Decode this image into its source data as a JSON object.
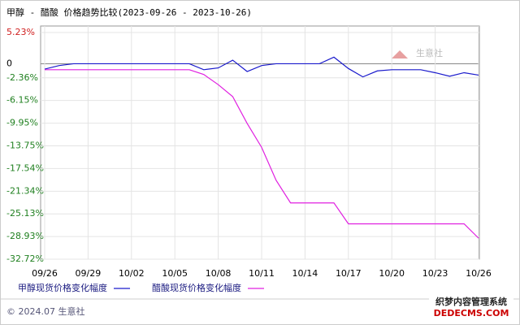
{
  "chart_data": {
    "type": "line",
    "title": "甲醇 - 醋酸 价格趋势比较(2023-09-26 - 2023-10-26)",
    "categories": [
      "09/26",
      null,
      null,
      "09/29",
      null,
      null,
      "10/02",
      null,
      null,
      "10/05",
      null,
      null,
      "10/08",
      null,
      null,
      "10/11",
      null,
      null,
      "10/14",
      null,
      null,
      "10/17",
      null,
      null,
      "10/20",
      null,
      null,
      "10/23",
      null,
      null,
      "10/26"
    ],
    "series": [
      {
        "name": "甲醇现货价格变化幅度",
        "color": "#1a1acc",
        "values": [
          -0.9,
          -0.3,
          0,
          0,
          0,
          0,
          0,
          0,
          0,
          0,
          0,
          -1.0,
          -0.7,
          0.6,
          -1.3,
          -0.3,
          0,
          0,
          0,
          0,
          1.1,
          -0.8,
          -2.2,
          -1.2,
          -1.0,
          -1.0,
          -1.0,
          -1.5,
          -2.1,
          -1.5,
          -1.9
        ]
      },
      {
        "name": "醋酸现货价格变化幅度",
        "color": "#e020e0",
        "values": [
          -1.0,
          -1.0,
          -1.0,
          -1.0,
          -1.0,
          -1.0,
          -1.0,
          -1.0,
          -1.0,
          -1.0,
          -1.0,
          -1.8,
          -3.5,
          -5.5,
          -10,
          -14,
          -19.5,
          -23.3,
          -23.3,
          -23.3,
          -23.3,
          -26.8,
          -26.8,
          -26.8,
          -26.8,
          -26.8,
          -26.8,
          -26.8,
          -26.8,
          -26.8,
          -29.2
        ]
      }
    ],
    "ylim": [
      -32.72,
      5.23
    ],
    "yticks": [
      {
        "value": 5.23,
        "label": "5.23%"
      },
      0,
      {
        "value": -2.36,
        "label": "-2.36%"
      },
      {
        "value": -6.15,
        "label": "-6.15%"
      },
      {
        "value": -9.95,
        "label": "-9.95%"
      },
      {
        "value": -13.75,
        "label": "-13.75%"
      },
      {
        "value": -17.54,
        "label": "-17.54%"
      },
      {
        "value": -21.34,
        "label": "-21.34%"
      },
      {
        "value": -25.13,
        "label": "-25.13%"
      },
      {
        "value": -28.93,
        "label": "-28.93%"
      },
      {
        "value": -32.72,
        "label": "-32.72%"
      }
    ],
    "grid": true,
    "watermark": "生意社",
    "footer": "© 2024.07 生意社",
    "corner_mark": "织梦内容管理系统",
    "corner_mark_sub": "DEDECMS.COM"
  }
}
